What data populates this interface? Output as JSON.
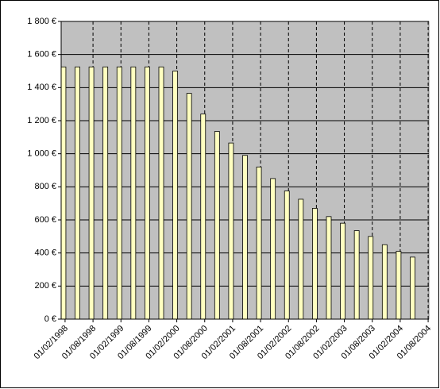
{
  "chart_data": {
    "type": "bar",
    "categories": [
      "01/02/1998",
      null,
      "01/08/1998",
      null,
      "01/02/1999",
      null,
      "01/08/1999",
      null,
      "01/02/2000",
      null,
      "01/08/2000",
      null,
      "01/02/2001",
      null,
      "01/08/2001",
      null,
      "01/02/2002",
      null,
      "01/08/2002",
      null,
      "01/02/2003",
      null,
      "01/08/2003",
      null,
      "01/02/2004",
      null,
      "01/08/2004"
    ],
    "values": [
      1525,
      1525,
      1525,
      1525,
      1525,
      1525,
      1525,
      1525,
      1500,
      1365,
      1240,
      1135,
      1065,
      990,
      920,
      850,
      775,
      725,
      670,
      620,
      580,
      535,
      500,
      450,
      410,
      375,
      null
    ],
    "color": "#ffffc0",
    "background": "#c0c0c0",
    "ylim": [
      0,
      1800
    ],
    "yticks": [
      {
        "value": 0,
        "label": "0 €"
      },
      {
        "value": 200,
        "label": "200 €"
      },
      {
        "value": 400,
        "label": "400 €"
      },
      {
        "value": 600,
        "label": "600 €"
      },
      {
        "value": 800,
        "label": "800 €"
      },
      {
        "value": 1000,
        "label": "1 000 €"
      },
      {
        "value": 1200,
        "label": "1 200 €"
      },
      {
        "value": 1400,
        "label": "1 400 €"
      },
      {
        "value": 1600,
        "label": "1 600 €"
      },
      {
        "value": 1800,
        "label": "1 800 €"
      }
    ],
    "grid": true,
    "x_grid": true
  }
}
